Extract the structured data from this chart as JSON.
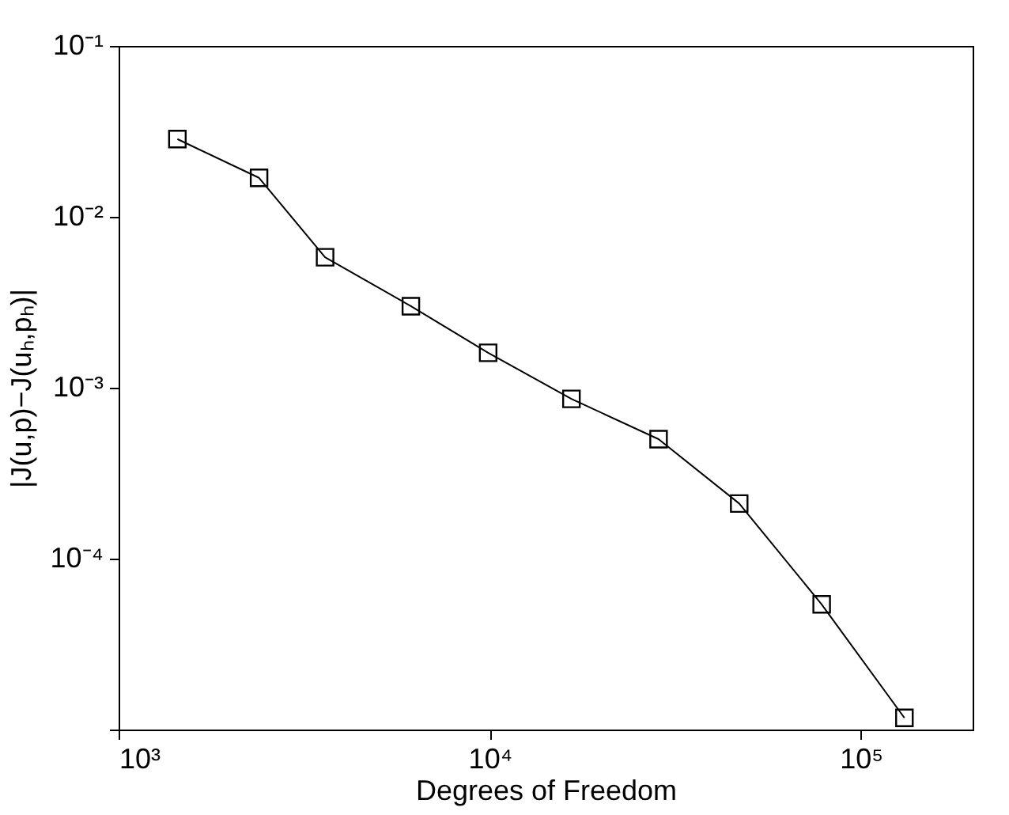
{
  "chart_data": {
    "type": "line",
    "xlabel": "Degrees of Freedom",
    "ylabel": "|J(u,p)−J(uₕ,pₕ)|",
    "log": "xy",
    "marker": "square",
    "line_style": "solid",
    "grid": false,
    "xlim": [
      1000,
      200000
    ],
    "ylim": [
      1e-05,
      0.1
    ],
    "xticks": [
      {
        "value": 1000,
        "label": "10³"
      },
      {
        "value": 10000,
        "label": "10⁴"
      },
      {
        "value": 100000,
        "label": "10⁵"
      }
    ],
    "yticks": [
      {
        "value": 1e-05,
        "label": null
      },
      {
        "value": 0.0001,
        "label": "10⁻⁴"
      },
      {
        "value": 0.001,
        "label": "10⁻³"
      },
      {
        "value": 0.01,
        "label": "10⁻²"
      },
      {
        "value": 0.1,
        "label": "10⁻¹"
      }
    ],
    "x": [
      1440,
      2390,
      3600,
      6130,
      9900,
      16600,
      28500,
      47000,
      78400,
      131000
    ],
    "series": [
      {
        "color": "#000000",
        "values": [
          0.0285,
          0.0169,
          0.0058,
          0.003,
          0.0016,
          0.00086,
          0.0005,
          0.00021,
          5.4e-05,
          1.17e-05
        ]
      }
    ]
  }
}
